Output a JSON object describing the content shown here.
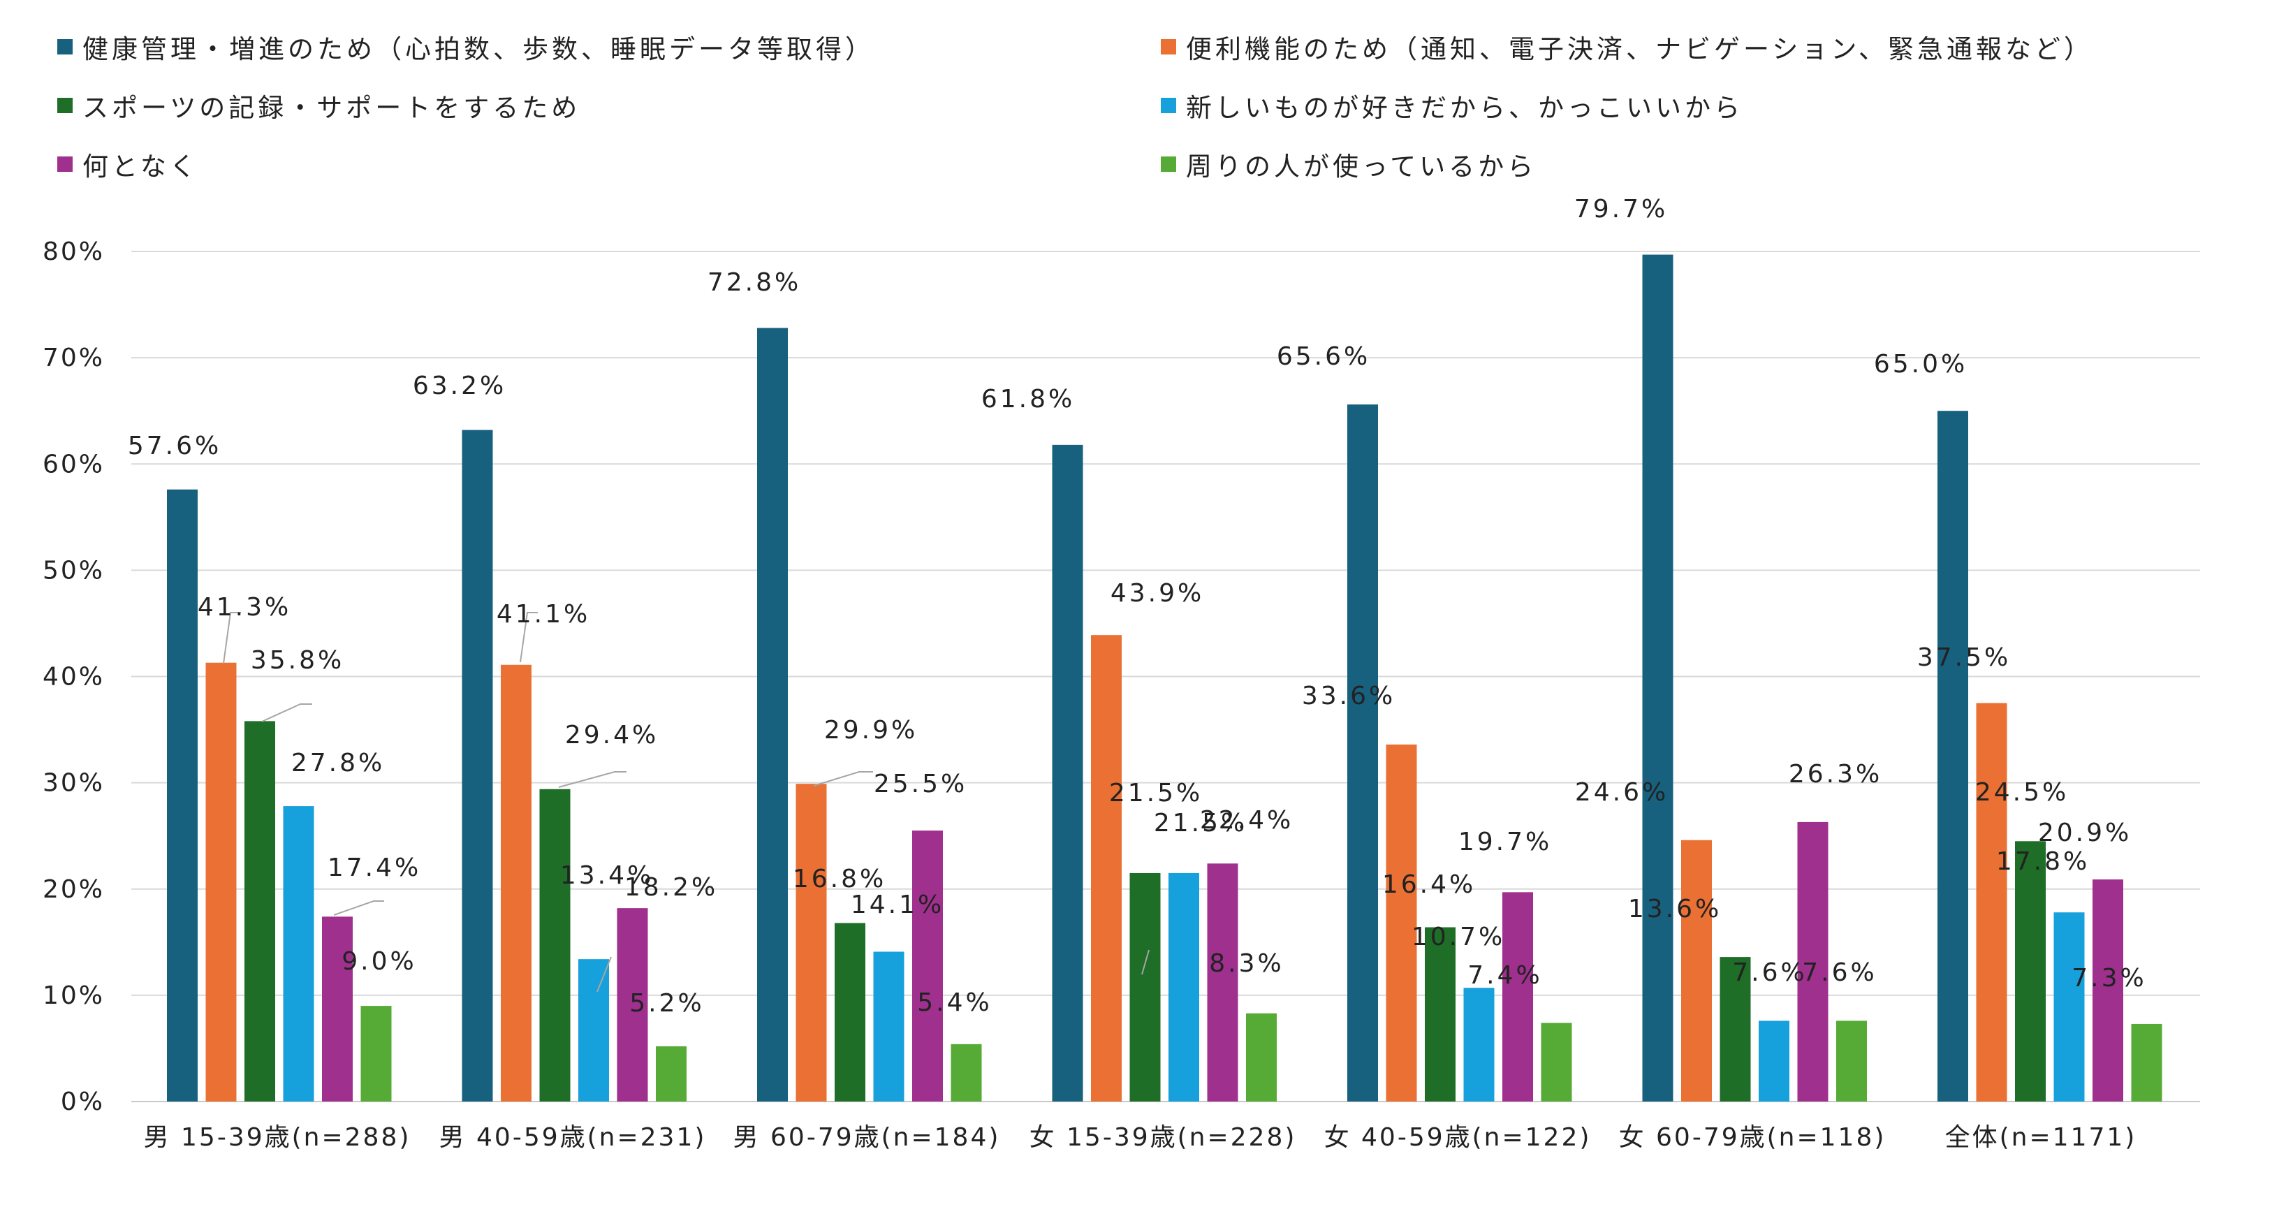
{
  "chart_data": {
    "type": "bar",
    "categories": [
      "男 15-39歳(n=288)",
      "男 40-59歳(n=231)",
      "男 60-79歳(n=184)",
      "女 15-39歳(n=228)",
      "女 40-59歳(n=122)",
      "女 60-79歳(n=118)",
      "全体(n=1171)"
    ],
    "series": [
      {
        "name": "健康管理・増進のため（心拍数、歩数、睡眠データ等取得）",
        "color": "#17617f",
        "values": [
          57.6,
          63.2,
          72.8,
          61.8,
          65.6,
          79.7,
          65.0
        ],
        "labels": [
          "57.6%",
          "63.2%",
          "72.8%",
          "61.8%",
          "65.6%",
          "79.7%",
          "65.0%"
        ]
      },
      {
        "name": "便利機能のため（通知、電子決済、ナビゲーション、緊急通報など）",
        "color": "#ea7133",
        "values": [
          41.3,
          41.1,
          29.9,
          43.9,
          33.6,
          24.6,
          37.5
        ],
        "labels": [
          "41.3%",
          "41.1%",
          "29.9%",
          "43.9%",
          "33.6%",
          "24.6%",
          "37.5%"
        ]
      },
      {
        "name": "スポーツの記録・サポートをするため",
        "color": "#1e6e28",
        "values": [
          35.8,
          29.4,
          16.8,
          21.5,
          16.4,
          13.6,
          24.5
        ],
        "labels": [
          "35.8%",
          "29.4%",
          "16.8%",
          "21.5%",
          "16.4%",
          "13.6%",
          "24.5%"
        ]
      },
      {
        "name": "新しいものが好きだから、かっこいいから",
        "color": "#16a0dc",
        "values": [
          27.8,
          13.4,
          14.1,
          21.5,
          10.7,
          7.6,
          17.8
        ],
        "labels": [
          "27.8%",
          "13.4%",
          "14.1%",
          "21.5%",
          "10.7%",
          "7.6%",
          "17.8%"
        ]
      },
      {
        "name": "何となく",
        "color": "#a0308e",
        "values": [
          17.4,
          18.2,
          25.5,
          22.4,
          19.7,
          26.3,
          20.9
        ],
        "labels": [
          "17.4%",
          "18.2%",
          "25.5%",
          "22.4%",
          "19.7%",
          "26.3%",
          "20.9%"
        ]
      },
      {
        "name": "周りの人が使っているから",
        "color": "#55ab35",
        "values": [
          9.0,
          5.2,
          5.4,
          8.3,
          7.4,
          7.6,
          7.3
        ],
        "labels": [
          "9.0%",
          "5.2%",
          "5.4%",
          "8.3%",
          "7.4%",
          "7.6%",
          "7.3%"
        ]
      }
    ],
    "ylim": [
      0,
      80
    ],
    "yticks": [
      "0%",
      "10%",
      "20%",
      "30%",
      "40%",
      "50%",
      "60%",
      "70%",
      "80%"
    ],
    "grid": true,
    "legend_position": "top"
  }
}
